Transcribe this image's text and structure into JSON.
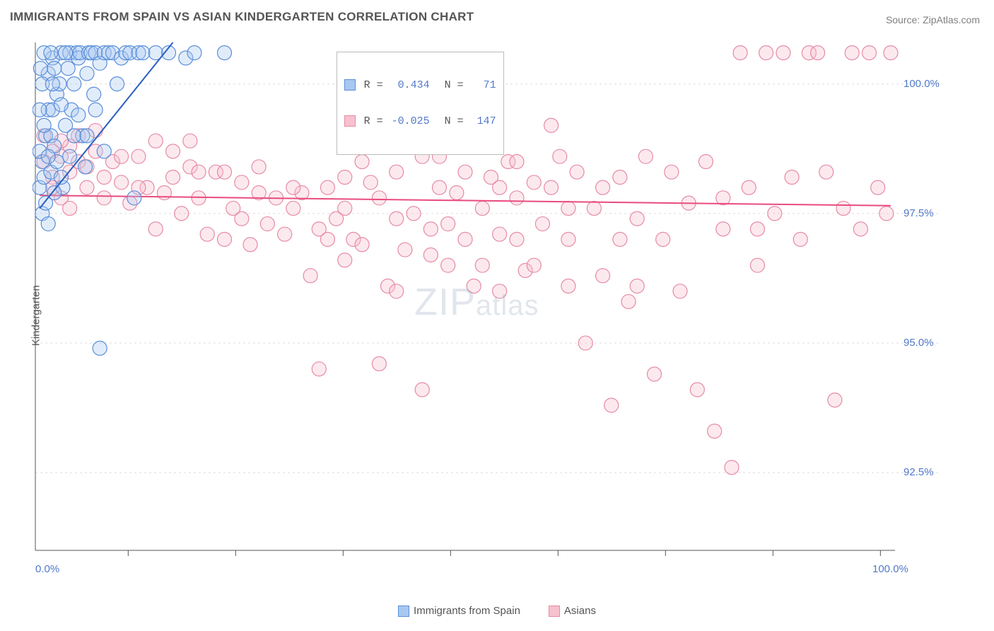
{
  "title": "IMMIGRANTS FROM SPAIN VS ASIAN KINDERGARTEN CORRELATION CHART",
  "source_label": "Source: ",
  "source_name": "ZipAtlas.com",
  "ylabel": "Kindergarten",
  "watermark_a": "ZIP",
  "watermark_b": "atlas",
  "chart": {
    "type": "scatter",
    "xlim": [
      0,
      100
    ],
    "ylim": [
      91.0,
      100.8
    ],
    "x_min_label": "0.0%",
    "x_max_label": "100.0%",
    "y_ticks": [
      92.5,
      95.0,
      97.5,
      100.0
    ],
    "y_tick_labels": [
      "92.5%",
      "95.0%",
      "97.5%",
      "100.0%"
    ],
    "x_ticks_minor": [
      10.8,
      23.3,
      35.8,
      48.3,
      60.8,
      73.3,
      85.8,
      98.3
    ],
    "background_color": "#ffffff",
    "grid_color": "#dddddd",
    "axis_color": "#555555",
    "axis_label_color": "#5179c9",
    "marker_radius": 10,
    "marker_stroke_width": 1.2,
    "marker_fill_opacity": 0.35,
    "trend_line_width": 2
  },
  "series": {
    "spain": {
      "label": "Immigrants from Spain",
      "R_label": "R =",
      "R": "0.434",
      "N_label": "N =",
      "N": "71",
      "fill": "#a8c8f0",
      "stroke": "#5a8ed8",
      "trend": {
        "x1": 0.5,
        "y1": 97.6,
        "x2": 16.0,
        "y2": 100.8,
        "color": "#2b5fbf"
      },
      "points": [
        [
          0.5,
          98.0
        ],
        [
          0.8,
          98.5
        ],
        [
          1.0,
          98.2
        ],
        [
          1.2,
          99.0
        ],
        [
          1.5,
          99.5
        ],
        [
          1.8,
          99.0
        ],
        [
          2.0,
          100.5
        ],
        [
          2.2,
          98.8
        ],
        [
          2.5,
          99.8
        ],
        [
          2.8,
          100.0
        ],
        [
          3.0,
          100.6
        ],
        [
          3.2,
          98.0
        ],
        [
          3.5,
          99.2
        ],
        [
          3.8,
          100.3
        ],
        [
          4.0,
          100.6
        ],
        [
          4.2,
          99.5
        ],
        [
          4.5,
          100.0
        ],
        [
          4.8,
          100.6
        ],
        [
          5.0,
          100.5
        ],
        [
          5.2,
          100.6
        ],
        [
          5.5,
          99.0
        ],
        [
          5.8,
          98.4
        ],
        [
          6.0,
          100.2
        ],
        [
          6.2,
          100.6
        ],
        [
          6.5,
          100.6
        ],
        [
          6.8,
          99.8
        ],
        [
          7.0,
          100.6
        ],
        [
          7.5,
          100.4
        ],
        [
          8.0,
          100.6
        ],
        [
          8.5,
          100.6
        ],
        [
          9.0,
          100.6
        ],
        [
          9.5,
          100.0
        ],
        [
          10.0,
          100.5
        ],
        [
          10.5,
          100.6
        ],
        [
          11.0,
          100.6
        ],
        [
          1.0,
          100.6
        ],
        [
          1.5,
          100.2
        ],
        [
          2.0,
          99.5
        ],
        [
          0.8,
          97.5
        ],
        [
          1.2,
          97.7
        ],
        [
          1.5,
          97.3
        ],
        [
          1.8,
          98.3
        ],
        [
          2.2,
          97.9
        ],
        [
          2.5,
          98.5
        ],
        [
          0.5,
          99.5
        ],
        [
          0.8,
          100.0
        ],
        [
          3.0,
          99.6
        ],
        [
          3.5,
          100.6
        ],
        [
          11.5,
          97.8
        ],
        [
          12.0,
          100.6
        ],
        [
          12.5,
          100.6
        ],
        [
          14.0,
          100.6
        ],
        [
          15.5,
          100.6
        ],
        [
          17.5,
          100.5
        ],
        [
          18.5,
          100.6
        ],
        [
          22.0,
          100.6
        ],
        [
          4.0,
          98.6
        ],
        [
          4.5,
          99.0
        ],
        [
          5.0,
          99.4
        ],
        [
          1.8,
          100.6
        ],
        [
          2.2,
          100.3
        ],
        [
          0.5,
          98.7
        ],
        [
          1.0,
          99.2
        ],
        [
          6.0,
          99.0
        ],
        [
          7.0,
          99.5
        ],
        [
          7.5,
          94.9
        ],
        [
          8.0,
          98.7
        ],
        [
          1.5,
          98.6
        ],
        [
          2.0,
          100.0
        ],
        [
          0.6,
          100.3
        ],
        [
          3.0,
          98.2
        ]
      ]
    },
    "asians": {
      "label": "Asians",
      "R_label": "R =",
      "R": "-0.025",
      "N_label": "N =",
      "N": "147",
      "fill": "#f7c1cf",
      "stroke": "#e68aa5",
      "trend": {
        "x1": 0.5,
        "y1": 97.85,
        "x2": 99.5,
        "y2": 97.65,
        "color": "#e94b7e"
      },
      "points": [
        [
          1,
          98.5
        ],
        [
          2,
          98.7
        ],
        [
          3,
          98.6
        ],
        [
          4,
          98.8
        ],
        [
          5,
          98.5
        ],
        [
          6,
          98.4
        ],
        [
          7,
          98.7
        ],
        [
          8,
          98.2
        ],
        [
          9,
          98.5
        ],
        [
          10,
          98.1
        ],
        [
          11,
          97.7
        ],
        [
          12,
          98.6
        ],
        [
          13,
          98.0
        ],
        [
          14,
          97.2
        ],
        [
          15,
          97.9
        ],
        [
          16,
          98.2
        ],
        [
          17,
          97.5
        ],
        [
          18,
          98.4
        ],
        [
          19,
          97.8
        ],
        [
          20,
          97.1
        ],
        [
          21,
          98.3
        ],
        [
          22,
          97.0
        ],
        [
          23,
          97.6
        ],
        [
          24,
          98.1
        ],
        [
          25,
          96.9
        ],
        [
          26,
          97.9
        ],
        [
          27,
          97.3
        ],
        [
          28,
          97.8
        ],
        [
          29,
          97.1
        ],
        [
          30,
          97.6
        ],
        [
          31,
          97.9
        ],
        [
          32,
          96.3
        ],
        [
          33,
          97.2
        ],
        [
          34,
          98.0
        ],
        [
          35,
          97.4
        ],
        [
          36,
          98.2
        ],
        [
          37,
          97.0
        ],
        [
          38,
          98.5
        ],
        [
          39,
          98.1
        ],
        [
          40,
          97.8
        ],
        [
          41,
          96.1
        ],
        [
          42,
          98.3
        ],
        [
          43,
          96.8
        ],
        [
          44,
          97.5
        ],
        [
          45,
          98.6
        ],
        [
          46,
          97.2
        ],
        [
          47,
          98.0
        ],
        [
          48,
          96.5
        ],
        [
          49,
          97.9
        ],
        [
          50,
          98.3
        ],
        [
          51,
          96.1
        ],
        [
          52,
          97.6
        ],
        [
          53,
          98.2
        ],
        [
          54,
          97.1
        ],
        [
          55,
          98.5
        ],
        [
          56,
          97.8
        ],
        [
          57,
          96.4
        ],
        [
          58,
          98.1
        ],
        [
          59,
          97.3
        ],
        [
          60,
          99.2
        ],
        [
          61,
          98.6
        ],
        [
          62,
          97.0
        ],
        [
          63,
          98.3
        ],
        [
          64,
          95.0
        ],
        [
          65,
          97.6
        ],
        [
          66,
          96.3
        ],
        [
          67,
          93.8
        ],
        [
          68,
          98.2
        ],
        [
          69,
          95.8
        ],
        [
          70,
          97.4
        ],
        [
          71,
          98.6
        ],
        [
          72,
          94.4
        ],
        [
          73,
          97.0
        ],
        [
          74,
          98.3
        ],
        [
          75,
          96.0
        ],
        [
          76,
          97.7
        ],
        [
          77,
          94.1
        ],
        [
          78,
          98.5
        ],
        [
          79,
          93.3
        ],
        [
          80,
          97.2
        ],
        [
          81,
          92.6
        ],
        [
          82,
          100.6
        ],
        [
          83,
          98.0
        ],
        [
          84,
          96.5
        ],
        [
          85,
          100.6
        ],
        [
          86,
          97.5
        ],
        [
          87,
          100.6
        ],
        [
          88,
          98.2
        ],
        [
          89,
          97.0
        ],
        [
          90,
          100.6
        ],
        [
          91,
          100.6
        ],
        [
          92,
          98.3
        ],
        [
          93,
          93.9
        ],
        [
          94,
          97.6
        ],
        [
          95,
          100.6
        ],
        [
          96,
          97.2
        ],
        [
          97,
          100.6
        ],
        [
          98,
          98.0
        ],
        [
          99,
          97.5
        ],
        [
          99.5,
          100.6
        ],
        [
          3,
          98.9
        ],
        [
          5,
          99.0
        ],
        [
          7,
          99.1
        ],
        [
          45,
          94.1
        ],
        [
          33,
          94.5
        ],
        [
          40,
          94.6
        ],
        [
          42,
          96.0
        ],
        [
          36,
          96.6
        ],
        [
          14,
          98.9
        ],
        [
          16,
          98.7
        ],
        [
          18,
          98.9
        ],
        [
          19,
          98.3
        ],
        [
          22,
          98.3
        ],
        [
          24,
          97.4
        ],
        [
          26,
          98.4
        ],
        [
          30,
          98.0
        ],
        [
          34,
          97.0
        ],
        [
          36,
          97.6
        ],
        [
          38,
          96.9
        ],
        [
          42,
          97.4
        ],
        [
          46,
          96.7
        ],
        [
          48,
          97.3
        ],
        [
          50,
          97.0
        ],
        [
          54,
          98.0
        ],
        [
          56,
          97.0
        ],
        [
          58,
          96.5
        ],
        [
          62,
          96.1
        ],
        [
          2,
          98.2
        ],
        [
          4,
          98.3
        ],
        [
          6,
          98.0
        ],
        [
          8,
          97.8
        ],
        [
          10,
          98.6
        ],
        [
          12,
          98.0
        ],
        [
          1,
          99.0
        ],
        [
          2,
          98.0
        ],
        [
          3,
          97.8
        ],
        [
          4,
          97.6
        ],
        [
          47,
          98.6
        ],
        [
          52,
          96.5
        ],
        [
          54,
          96.0
        ],
        [
          56,
          98.5
        ],
        [
          60,
          98.0
        ],
        [
          62,
          97.6
        ],
        [
          66,
          98.0
        ],
        [
          68,
          97.0
        ],
        [
          70,
          96.1
        ],
        [
          80,
          97.8
        ],
        [
          84,
          97.2
        ]
      ]
    }
  },
  "bottom_legend": {
    "spain_label": "Immigrants from Spain",
    "asians_label": "Asians"
  }
}
